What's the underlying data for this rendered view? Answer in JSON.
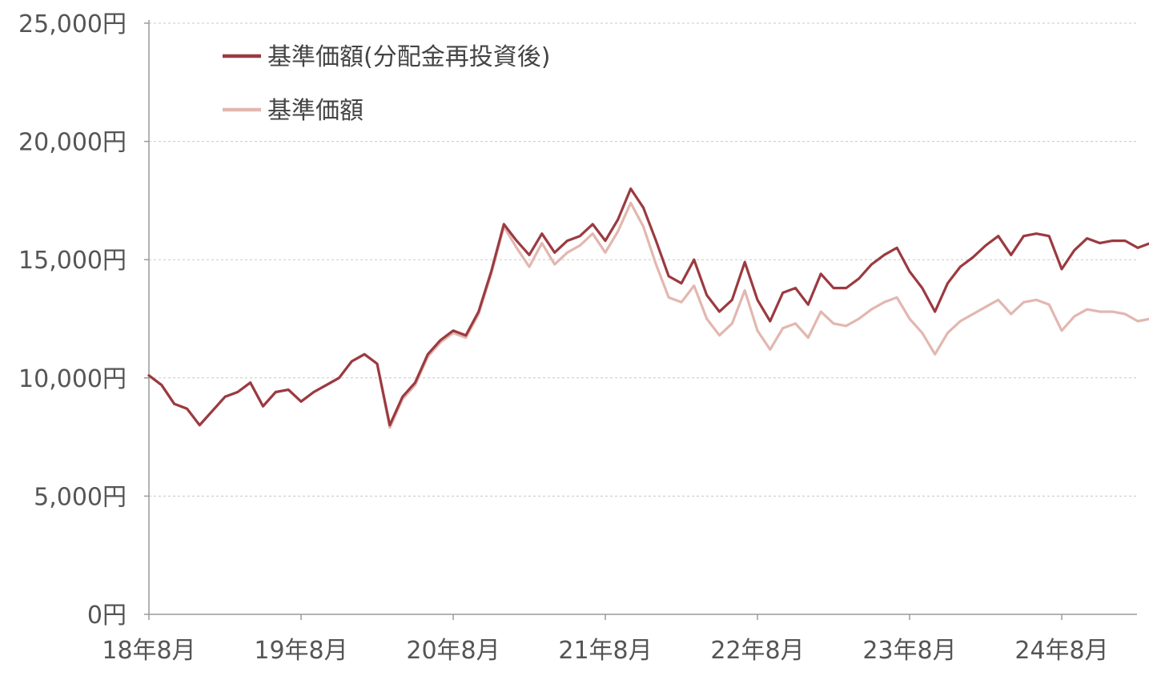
{
  "chart_data": {
    "type": "line",
    "title": "",
    "xlabel": "",
    "ylabel": "",
    "ylim": [
      0,
      25000
    ],
    "xlim": [
      "2018-08",
      "2025-03"
    ],
    "y_ticks": [
      0,
      5000,
      10000,
      15000,
      20000,
      25000
    ],
    "y_tick_labels": [
      "0円",
      "5,000円",
      "10,000円",
      "15,000円",
      "20,000円",
      "25,000円"
    ],
    "x_ticks": [
      "2018-08",
      "2019-08",
      "2020-08",
      "2021-08",
      "2022-08",
      "2023-08",
      "2024-08"
    ],
    "x_tick_labels": [
      "18年8月",
      "19年8月",
      "20年8月",
      "21年8月",
      "22年8月",
      "23年8月",
      "24年8月"
    ],
    "grid": "horizontal-dashed",
    "legend_position": "top-left",
    "series": [
      {
        "name": "基準価額(分配金再投資後)",
        "color": "#9b3a40",
        "points": [
          [
            "2018-08",
            10100
          ],
          [
            "2018-09",
            9700
          ],
          [
            "2018-10",
            8900
          ],
          [
            "2018-11",
            8700
          ],
          [
            "2018-12",
            8000
          ],
          [
            "2019-01",
            8600
          ],
          [
            "2019-02",
            9200
          ],
          [
            "2019-03",
            9400
          ],
          [
            "2019-04",
            9800
          ],
          [
            "2019-05",
            8800
          ],
          [
            "2019-06",
            9400
          ],
          [
            "2019-07",
            9500
          ],
          [
            "2019-08",
            9000
          ],
          [
            "2019-09",
            9400
          ],
          [
            "2019-10",
            9700
          ],
          [
            "2019-11",
            10000
          ],
          [
            "2019-12",
            10700
          ],
          [
            "2020-01",
            11000
          ],
          [
            "2020-02",
            10600
          ],
          [
            "2020-03",
            8000
          ],
          [
            "2020-04",
            9200
          ],
          [
            "2020-05",
            9800
          ],
          [
            "2020-06",
            11000
          ],
          [
            "2020-07",
            11600
          ],
          [
            "2020-08",
            12000
          ],
          [
            "2020-09",
            11800
          ],
          [
            "2020-10",
            12800
          ],
          [
            "2020-11",
            14500
          ],
          [
            "2020-12",
            16500
          ],
          [
            "2021-01",
            15800
          ],
          [
            "2021-02",
            15200
          ],
          [
            "2021-03",
            16100
          ],
          [
            "2021-04",
            15300
          ],
          [
            "2021-05",
            15800
          ],
          [
            "2021-06",
            16000
          ],
          [
            "2021-07",
            16500
          ],
          [
            "2021-08",
            15800
          ],
          [
            "2021-09",
            16700
          ],
          [
            "2021-10",
            18000
          ],
          [
            "2021-11",
            17200
          ],
          [
            "2021-12",
            15800
          ],
          [
            "2022-01",
            14300
          ],
          [
            "2022-02",
            14000
          ],
          [
            "2022-03",
            15000
          ],
          [
            "2022-04",
            13500
          ],
          [
            "2022-05",
            12800
          ],
          [
            "2022-06",
            13300
          ],
          [
            "2022-07",
            14900
          ],
          [
            "2022-08",
            13300
          ],
          [
            "2022-09",
            12400
          ],
          [
            "2022-10",
            13600
          ],
          [
            "2022-11",
            13800
          ],
          [
            "2022-12",
            13100
          ],
          [
            "2023-01",
            14400
          ],
          [
            "2023-02",
            13800
          ],
          [
            "2023-03",
            13800
          ],
          [
            "2023-04",
            14200
          ],
          [
            "2023-05",
            14800
          ],
          [
            "2023-06",
            15200
          ],
          [
            "2023-07",
            15500
          ],
          [
            "2023-08",
            14500
          ],
          [
            "2023-09",
            13800
          ],
          [
            "2023-10",
            12800
          ],
          [
            "2023-11",
            14000
          ],
          [
            "2023-12",
            14700
          ],
          [
            "2024-01",
            15100
          ],
          [
            "2024-02",
            15600
          ],
          [
            "2024-03",
            16000
          ],
          [
            "2024-04",
            15200
          ],
          [
            "2024-05",
            16000
          ],
          [
            "2024-06",
            16100
          ],
          [
            "2024-07",
            16000
          ],
          [
            "2024-08",
            14600
          ],
          [
            "2024-09",
            15400
          ],
          [
            "2024-10",
            15900
          ],
          [
            "2024-11",
            15700
          ],
          [
            "2024-12",
            15800
          ],
          [
            "2025-01",
            15800
          ],
          [
            "2025-02",
            15500
          ],
          [
            "2025-03",
            15700
          ]
        ]
      },
      {
        "name": "基準価額",
        "color": "#e2b7b0",
        "points": [
          [
            "2018-08",
            10100
          ],
          [
            "2018-09",
            9700
          ],
          [
            "2018-10",
            8900
          ],
          [
            "2018-11",
            8700
          ],
          [
            "2018-12",
            8000
          ],
          [
            "2019-01",
            8600
          ],
          [
            "2019-02",
            9200
          ],
          [
            "2019-03",
            9400
          ],
          [
            "2019-04",
            9800
          ],
          [
            "2019-05",
            8800
          ],
          [
            "2019-06",
            9400
          ],
          [
            "2019-07",
            9500
          ],
          [
            "2019-08",
            9000
          ],
          [
            "2019-09",
            9400
          ],
          [
            "2019-10",
            9700
          ],
          [
            "2019-11",
            10000
          ],
          [
            "2019-12",
            10700
          ],
          [
            "2020-01",
            11000
          ],
          [
            "2020-02",
            10600
          ],
          [
            "2020-03",
            7900
          ],
          [
            "2020-04",
            9100
          ],
          [
            "2020-05",
            9700
          ],
          [
            "2020-06",
            10900
          ],
          [
            "2020-07",
            11500
          ],
          [
            "2020-08",
            11900
          ],
          [
            "2020-09",
            11700
          ],
          [
            "2020-10",
            12700
          ],
          [
            "2020-11",
            14400
          ],
          [
            "2020-12",
            16400
          ],
          [
            "2021-01",
            15500
          ],
          [
            "2021-02",
            14700
          ],
          [
            "2021-03",
            15700
          ],
          [
            "2021-04",
            14800
          ],
          [
            "2021-05",
            15300
          ],
          [
            "2021-06",
            15600
          ],
          [
            "2021-07",
            16100
          ],
          [
            "2021-08",
            15300
          ],
          [
            "2021-09",
            16200
          ],
          [
            "2021-10",
            17400
          ],
          [
            "2021-11",
            16400
          ],
          [
            "2021-12",
            14800
          ],
          [
            "2022-01",
            13400
          ],
          [
            "2022-02",
            13200
          ],
          [
            "2022-03",
            13900
          ],
          [
            "2022-04",
            12500
          ],
          [
            "2022-05",
            11800
          ],
          [
            "2022-06",
            12300
          ],
          [
            "2022-07",
            13700
          ],
          [
            "2022-08",
            12000
          ],
          [
            "2022-09",
            11200
          ],
          [
            "2022-10",
            12100
          ],
          [
            "2022-11",
            12300
          ],
          [
            "2022-12",
            11700
          ],
          [
            "2023-01",
            12800
          ],
          [
            "2023-02",
            12300
          ],
          [
            "2023-03",
            12200
          ],
          [
            "2023-04",
            12500
          ],
          [
            "2023-05",
            12900
          ],
          [
            "2023-06",
            13200
          ],
          [
            "2023-07",
            13400
          ],
          [
            "2023-08",
            12500
          ],
          [
            "2023-09",
            11900
          ],
          [
            "2023-10",
            11000
          ],
          [
            "2023-11",
            11900
          ],
          [
            "2023-12",
            12400
          ],
          [
            "2024-01",
            12700
          ],
          [
            "2024-02",
            13000
          ],
          [
            "2024-03",
            13300
          ],
          [
            "2024-04",
            12700
          ],
          [
            "2024-05",
            13200
          ],
          [
            "2024-06",
            13300
          ],
          [
            "2024-07",
            13100
          ],
          [
            "2024-08",
            12000
          ],
          [
            "2024-09",
            12600
          ],
          [
            "2024-10",
            12900
          ],
          [
            "2024-11",
            12800
          ],
          [
            "2024-12",
            12800
          ],
          [
            "2025-01",
            12700
          ],
          [
            "2025-02",
            12400
          ],
          [
            "2025-03",
            12500
          ]
        ]
      }
    ]
  }
}
